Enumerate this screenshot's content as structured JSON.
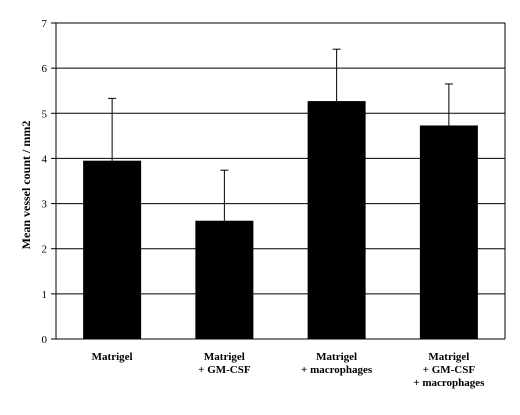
{
  "chart_data": {
    "type": "bar",
    "categories": [
      [
        "Matrigel"
      ],
      [
        "Matrigel",
        "+ GM-CSF"
      ],
      [
        "Matrigel",
        "+ macrophages"
      ],
      [
        "Matrigel",
        "+ GM-CSF",
        "+ macrophages"
      ]
    ],
    "values": [
      3.95,
      2.62,
      5.27,
      4.73
    ],
    "error_bars": [
      1.38,
      1.12,
      1.15,
      0.92
    ],
    "title": "",
    "xlabel": "",
    "ylabel": "Mean vessel count / mm2",
    "ylim": [
      0,
      7
    ],
    "yticks": [
      0,
      1,
      2,
      3,
      4,
      5,
      6,
      7
    ],
    "grid": true,
    "bar_color": "#000000",
    "grid_color": "#000000"
  }
}
